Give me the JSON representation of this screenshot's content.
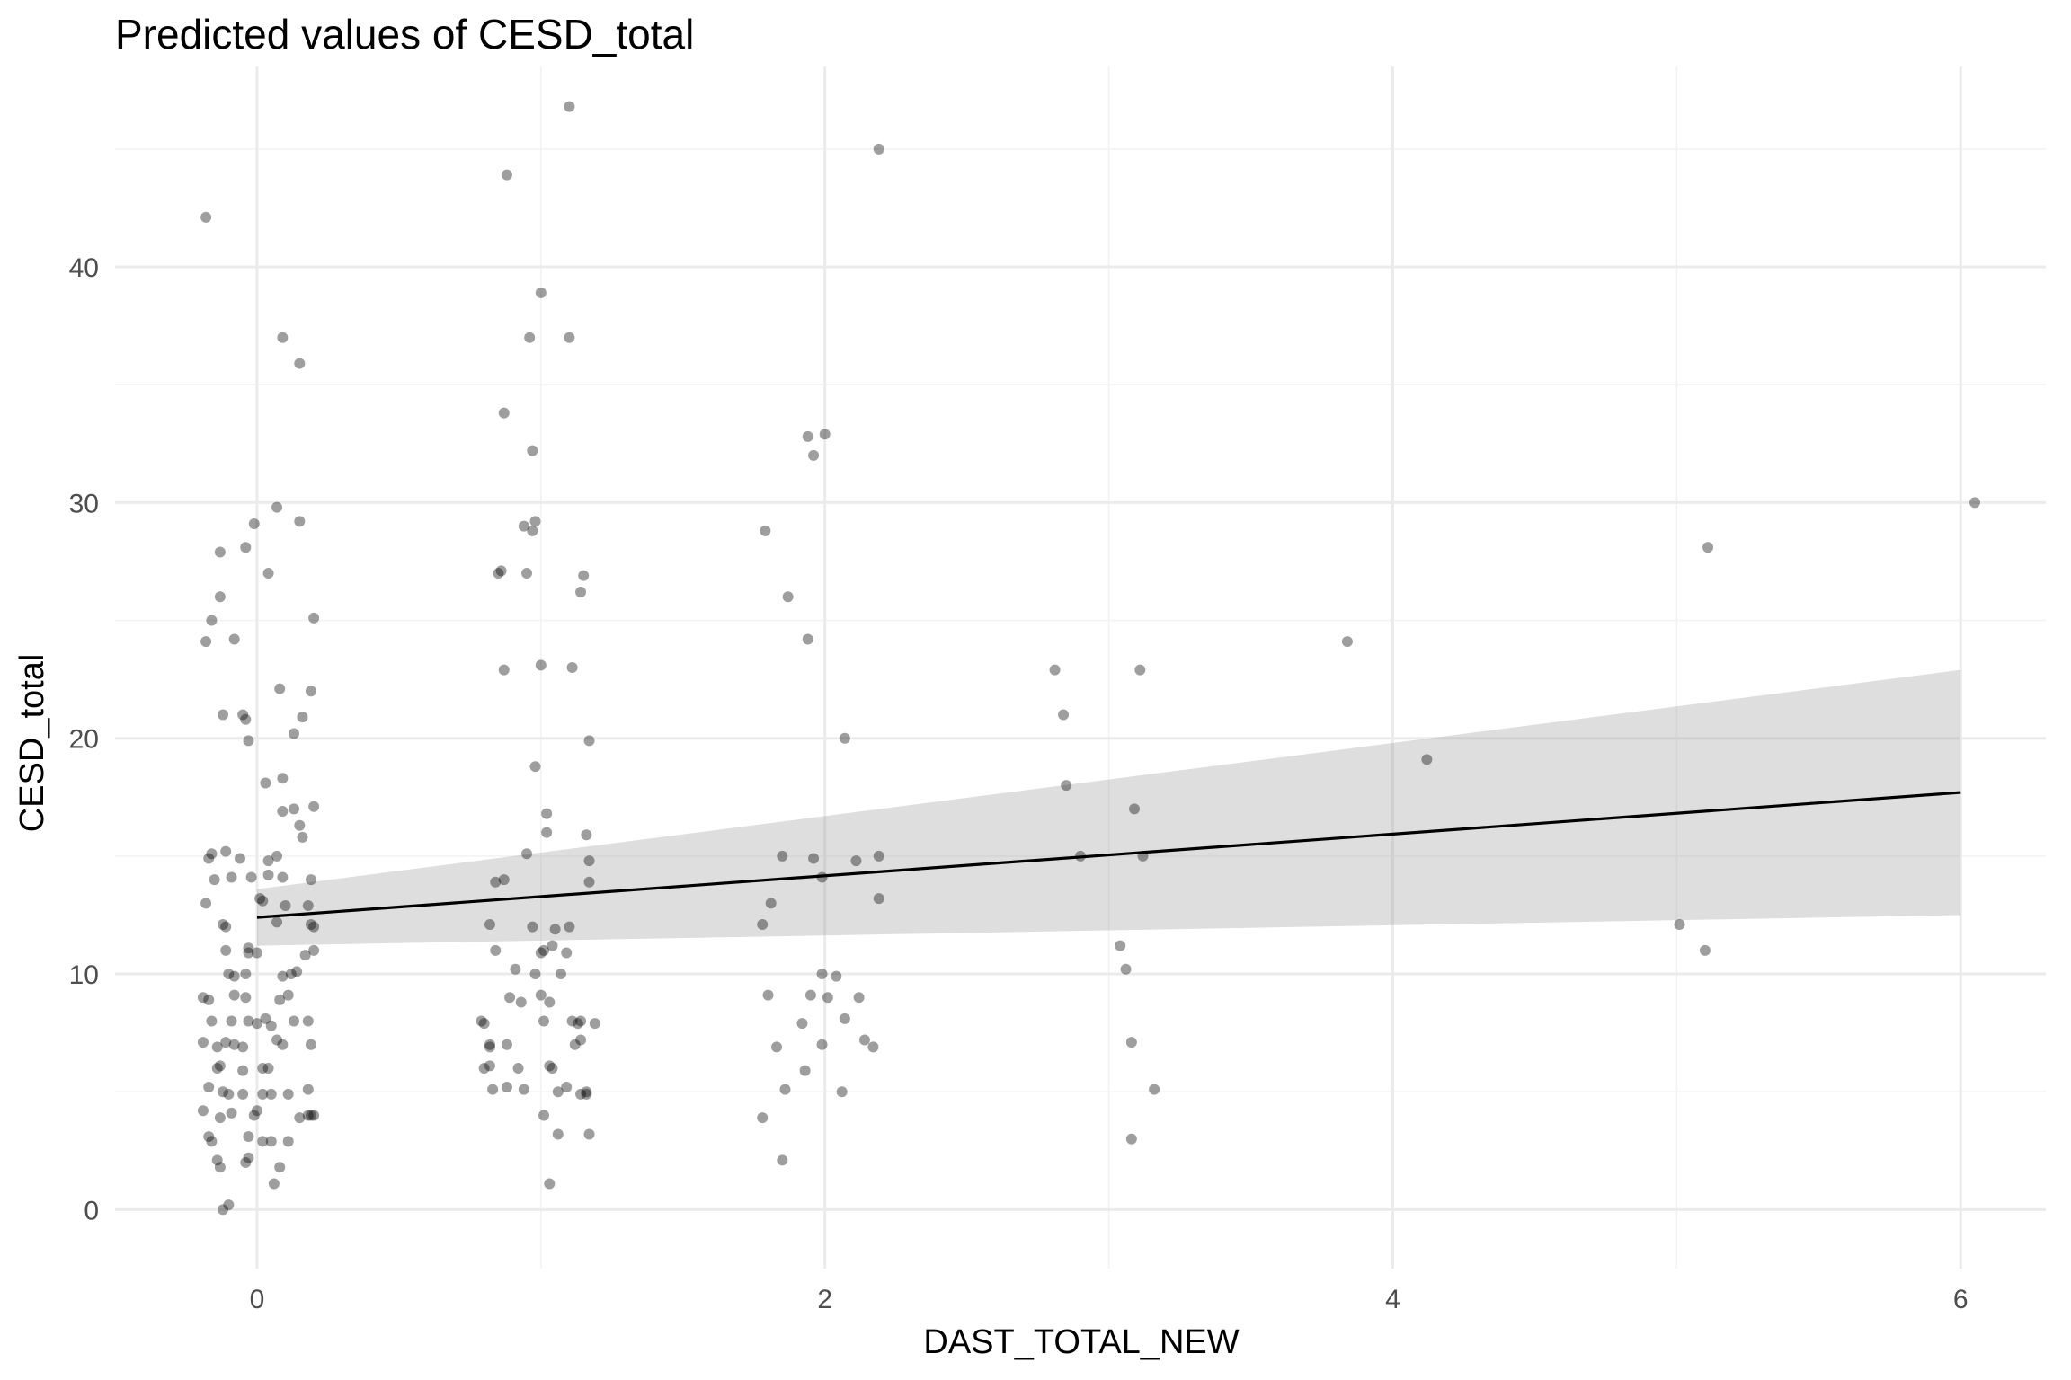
{
  "chart_data": {
    "type": "scatter",
    "title": "Predicted values of CESD_total",
    "xlabel": "DAST_TOTAL_NEW",
    "ylabel": "CESD_total",
    "xlim": [
      -0.5,
      6.3
    ],
    "ylim": [
      -2.5,
      48.5
    ],
    "x_ticks": [
      0,
      2,
      4,
      6
    ],
    "y_ticks": [
      0,
      10,
      20,
      30,
      40
    ],
    "x_minor_ticks": [
      1,
      3,
      5
    ],
    "y_minor_ticks": [
      5,
      15,
      25,
      35,
      45
    ],
    "grid": true,
    "legend": "none",
    "fit": {
      "x": [
        0,
        6
      ],
      "y": [
        12.4,
        17.7
      ],
      "ci_lower": [
        11.2,
        12.5
      ],
      "ci_upper": [
        13.6,
        22.9
      ]
    },
    "points": [
      {
        "x": -0.18,
        "y": 42.1
      },
      {
        "x": 0.09,
        "y": 37.0
      },
      {
        "x": 0.15,
        "y": 35.9
      },
      {
        "x": 0.07,
        "y": 29.8
      },
      {
        "x": -0.01,
        "y": 29.1
      },
      {
        "x": 0.15,
        "y": 29.2
      },
      {
        "x": -0.13,
        "y": 27.9
      },
      {
        "x": -0.04,
        "y": 28.1
      },
      {
        "x": 0.04,
        "y": 27.0
      },
      {
        "x": -0.13,
        "y": 26.0
      },
      {
        "x": -0.16,
        "y": 25.0
      },
      {
        "x": 0.2,
        "y": 25.1
      },
      {
        "x": -0.18,
        "y": 24.1
      },
      {
        "x": -0.08,
        "y": 24.2
      },
      {
        "x": 0.08,
        "y": 22.1
      },
      {
        "x": 0.19,
        "y": 22.0
      },
      {
        "x": -0.12,
        "y": 21.0
      },
      {
        "x": -0.05,
        "y": 21.0
      },
      {
        "x": -0.04,
        "y": 20.8
      },
      {
        "x": 0.16,
        "y": 20.9
      },
      {
        "x": 0.13,
        "y": 20.2
      },
      {
        "x": -0.03,
        "y": 19.9
      },
      {
        "x": 0.03,
        "y": 18.1
      },
      {
        "x": 0.09,
        "y": 18.3
      },
      {
        "x": 0.09,
        "y": 16.9
      },
      {
        "x": 0.13,
        "y": 17.0
      },
      {
        "x": 0.2,
        "y": 17.1
      },
      {
        "x": 0.15,
        "y": 16.3
      },
      {
        "x": 0.16,
        "y": 15.8
      },
      {
        "x": -0.16,
        "y": 15.1
      },
      {
        "x": -0.11,
        "y": 15.2
      },
      {
        "x": -0.17,
        "y": 14.9
      },
      {
        "x": -0.06,
        "y": 14.9
      },
      {
        "x": 0.04,
        "y": 14.8
      },
      {
        "x": 0.07,
        "y": 15.0
      },
      {
        "x": -0.15,
        "y": 14.0
      },
      {
        "x": -0.09,
        "y": 14.1
      },
      {
        "x": -0.02,
        "y": 14.1
      },
      {
        "x": 0.04,
        "y": 14.2
      },
      {
        "x": 0.09,
        "y": 14.1
      },
      {
        "x": 0.19,
        "y": 14.0
      },
      {
        "x": -0.18,
        "y": 13.0
      },
      {
        "x": 0.02,
        "y": 13.1
      },
      {
        "x": 0.01,
        "y": 13.2
      },
      {
        "x": 0.1,
        "y": 12.9
      },
      {
        "x": 0.18,
        "y": 12.9
      },
      {
        "x": -0.12,
        "y": 12.1
      },
      {
        "x": -0.11,
        "y": 12.0
      },
      {
        "x": 0.07,
        "y": 12.2
      },
      {
        "x": 0.19,
        "y": 12.1
      },
      {
        "x": 0.2,
        "y": 12.0
      },
      {
        "x": -0.11,
        "y": 11.0
      },
      {
        "x": -0.03,
        "y": 11.1
      },
      {
        "x": -0.03,
        "y": 10.9
      },
      {
        "x": 0.0,
        "y": 10.9
      },
      {
        "x": 0.17,
        "y": 10.8
      },
      {
        "x": 0.2,
        "y": 11.0
      },
      {
        "x": -0.1,
        "y": 10.0
      },
      {
        "x": -0.08,
        "y": 9.9
      },
      {
        "x": -0.04,
        "y": 10.0
      },
      {
        "x": 0.09,
        "y": 9.9
      },
      {
        "x": 0.12,
        "y": 10.0
      },
      {
        "x": 0.14,
        "y": 10.1
      },
      {
        "x": -0.19,
        "y": 9.0
      },
      {
        "x": -0.17,
        "y": 8.9
      },
      {
        "x": -0.08,
        "y": 9.1
      },
      {
        "x": -0.04,
        "y": 9.0
      },
      {
        "x": 0.08,
        "y": 8.9
      },
      {
        "x": 0.11,
        "y": 9.1
      },
      {
        "x": -0.16,
        "y": 8.0
      },
      {
        "x": -0.09,
        "y": 8.0
      },
      {
        "x": -0.03,
        "y": 8.0
      },
      {
        "x": 0.0,
        "y": 7.9
      },
      {
        "x": 0.03,
        "y": 8.1
      },
      {
        "x": 0.05,
        "y": 7.8
      },
      {
        "x": 0.13,
        "y": 8.0
      },
      {
        "x": 0.18,
        "y": 8.0
      },
      {
        "x": -0.19,
        "y": 7.1
      },
      {
        "x": -0.14,
        "y": 6.9
      },
      {
        "x": -0.11,
        "y": 7.1
      },
      {
        "x": -0.08,
        "y": 7.0
      },
      {
        "x": -0.05,
        "y": 6.9
      },
      {
        "x": 0.07,
        "y": 7.2
      },
      {
        "x": 0.09,
        "y": 7.0
      },
      {
        "x": 0.19,
        "y": 7.0
      },
      {
        "x": -0.14,
        "y": 6.0
      },
      {
        "x": -0.13,
        "y": 6.1
      },
      {
        "x": -0.05,
        "y": 5.9
      },
      {
        "x": 0.02,
        "y": 6.0
      },
      {
        "x": 0.04,
        "y": 6.0
      },
      {
        "x": -0.17,
        "y": 5.2
      },
      {
        "x": -0.12,
        "y": 5.0
      },
      {
        "x": -0.1,
        "y": 4.9
      },
      {
        "x": -0.05,
        "y": 4.9
      },
      {
        "x": 0.02,
        "y": 4.9
      },
      {
        "x": 0.05,
        "y": 4.9
      },
      {
        "x": 0.11,
        "y": 4.9
      },
      {
        "x": 0.18,
        "y": 5.1
      },
      {
        "x": -0.19,
        "y": 4.2
      },
      {
        "x": -0.13,
        "y": 3.9
      },
      {
        "x": -0.09,
        "y": 4.1
      },
      {
        "x": -0.01,
        "y": 4.0
      },
      {
        "x": 0.0,
        "y": 4.2
      },
      {
        "x": 0.15,
        "y": 3.9
      },
      {
        "x": 0.18,
        "y": 4.0
      },
      {
        "x": 0.19,
        "y": 4.0
      },
      {
        "x": 0.2,
        "y": 4.0
      },
      {
        "x": -0.17,
        "y": 3.1
      },
      {
        "x": -0.16,
        "y": 2.9
      },
      {
        "x": -0.03,
        "y": 3.1
      },
      {
        "x": 0.02,
        "y": 2.9
      },
      {
        "x": 0.05,
        "y": 2.9
      },
      {
        "x": 0.11,
        "y": 2.9
      },
      {
        "x": -0.14,
        "y": 2.1
      },
      {
        "x": -0.13,
        "y": 1.8
      },
      {
        "x": -0.04,
        "y": 2.0
      },
      {
        "x": -0.03,
        "y": 2.2
      },
      {
        "x": 0.08,
        "y": 1.8
      },
      {
        "x": 0.06,
        "y": 1.1
      },
      {
        "x": -0.1,
        "y": 0.2
      },
      {
        "x": -0.12,
        "y": 0.0
      },
      {
        "x": 1.1,
        "y": 46.8
      },
      {
        "x": 0.88,
        "y": 43.9
      },
      {
        "x": 1.0,
        "y": 38.9
      },
      {
        "x": 0.96,
        "y": 37.0
      },
      {
        "x": 1.1,
        "y": 37.0
      },
      {
        "x": 0.87,
        "y": 33.8
      },
      {
        "x": 0.97,
        "y": 32.2
      },
      {
        "x": 0.94,
        "y": 29.0
      },
      {
        "x": 0.97,
        "y": 28.8
      },
      {
        "x": 0.98,
        "y": 29.2
      },
      {
        "x": 0.86,
        "y": 27.1
      },
      {
        "x": 0.85,
        "y": 27.0
      },
      {
        "x": 0.95,
        "y": 27.0
      },
      {
        "x": 1.15,
        "y": 26.9
      },
      {
        "x": 1.14,
        "y": 26.2
      },
      {
        "x": 1.0,
        "y": 23.1
      },
      {
        "x": 1.11,
        "y": 23.0
      },
      {
        "x": 0.87,
        "y": 22.9
      },
      {
        "x": 1.17,
        "y": 19.9
      },
      {
        "x": 0.98,
        "y": 18.8
      },
      {
        "x": 1.02,
        "y": 16.8
      },
      {
        "x": 1.16,
        "y": 15.9
      },
      {
        "x": 1.02,
        "y": 16.0
      },
      {
        "x": 0.95,
        "y": 15.1
      },
      {
        "x": 1.17,
        "y": 14.8
      },
      {
        "x": 0.87,
        "y": 14.0
      },
      {
        "x": 0.84,
        "y": 13.9
      },
      {
        "x": 1.17,
        "y": 13.9
      },
      {
        "x": 0.82,
        "y": 12.1
      },
      {
        "x": 0.97,
        "y": 12.0
      },
      {
        "x": 1.05,
        "y": 11.9
      },
      {
        "x": 1.1,
        "y": 12.0
      },
      {
        "x": 0.84,
        "y": 11.0
      },
      {
        "x": 1.0,
        "y": 10.9
      },
      {
        "x": 1.01,
        "y": 11.0
      },
      {
        "x": 1.04,
        "y": 11.2
      },
      {
        "x": 1.09,
        "y": 10.9
      },
      {
        "x": 0.91,
        "y": 10.2
      },
      {
        "x": 0.98,
        "y": 10.0
      },
      {
        "x": 1.07,
        "y": 10.0
      },
      {
        "x": 0.89,
        "y": 9.0
      },
      {
        "x": 1.0,
        "y": 9.1
      },
      {
        "x": 0.93,
        "y": 8.8
      },
      {
        "x": 1.03,
        "y": 8.8
      },
      {
        "x": 0.8,
        "y": 7.9
      },
      {
        "x": 0.79,
        "y": 8.0
      },
      {
        "x": 1.01,
        "y": 8.0
      },
      {
        "x": 1.11,
        "y": 8.0
      },
      {
        "x": 1.14,
        "y": 8.0
      },
      {
        "x": 1.13,
        "y": 7.9
      },
      {
        "x": 1.19,
        "y": 7.9
      },
      {
        "x": 0.82,
        "y": 6.9
      },
      {
        "x": 0.82,
        "y": 7.0
      },
      {
        "x": 0.88,
        "y": 7.0
      },
      {
        "x": 1.12,
        "y": 7.0
      },
      {
        "x": 1.14,
        "y": 7.2
      },
      {
        "x": 0.8,
        "y": 6.0
      },
      {
        "x": 0.82,
        "y": 6.1
      },
      {
        "x": 0.92,
        "y": 6.0
      },
      {
        "x": 1.03,
        "y": 6.1
      },
      {
        "x": 1.04,
        "y": 6.0
      },
      {
        "x": 0.83,
        "y": 5.1
      },
      {
        "x": 0.88,
        "y": 5.2
      },
      {
        "x": 0.94,
        "y": 5.1
      },
      {
        "x": 1.06,
        "y": 5.0
      },
      {
        "x": 1.09,
        "y": 5.2
      },
      {
        "x": 1.14,
        "y": 4.9
      },
      {
        "x": 1.16,
        "y": 4.9
      },
      {
        "x": 1.16,
        "y": 5.0
      },
      {
        "x": 1.01,
        "y": 4.0
      },
      {
        "x": 1.06,
        "y": 3.2
      },
      {
        "x": 1.17,
        "y": 3.2
      },
      {
        "x": 1.03,
        "y": 1.1
      },
      {
        "x": 2.19,
        "y": 45.0
      },
      {
        "x": 1.94,
        "y": 32.8
      },
      {
        "x": 2.0,
        "y": 32.9
      },
      {
        "x": 1.96,
        "y": 32.0
      },
      {
        "x": 1.79,
        "y": 28.8
      },
      {
        "x": 1.87,
        "y": 26.0
      },
      {
        "x": 1.94,
        "y": 24.2
      },
      {
        "x": 2.07,
        "y": 20.0
      },
      {
        "x": 1.85,
        "y": 15.0
      },
      {
        "x": 1.96,
        "y": 14.9
      },
      {
        "x": 2.11,
        "y": 14.8
      },
      {
        "x": 2.19,
        "y": 15.0
      },
      {
        "x": 1.99,
        "y": 14.1
      },
      {
        "x": 1.81,
        "y": 13.0
      },
      {
        "x": 2.19,
        "y": 13.2
      },
      {
        "x": 1.78,
        "y": 12.1
      },
      {
        "x": 1.99,
        "y": 10.0
      },
      {
        "x": 2.04,
        "y": 9.9
      },
      {
        "x": 1.8,
        "y": 9.1
      },
      {
        "x": 1.95,
        "y": 9.1
      },
      {
        "x": 2.01,
        "y": 9.0
      },
      {
        "x": 2.12,
        "y": 9.0
      },
      {
        "x": 1.92,
        "y": 7.9
      },
      {
        "x": 2.07,
        "y": 8.1
      },
      {
        "x": 1.83,
        "y": 6.9
      },
      {
        "x": 1.99,
        "y": 7.0
      },
      {
        "x": 2.14,
        "y": 7.2
      },
      {
        "x": 2.17,
        "y": 6.9
      },
      {
        "x": 1.93,
        "y": 5.9
      },
      {
        "x": 1.86,
        "y": 5.1
      },
      {
        "x": 2.06,
        "y": 5.0
      },
      {
        "x": 1.78,
        "y": 3.9
      },
      {
        "x": 1.85,
        "y": 2.1
      },
      {
        "x": 2.81,
        "y": 22.9
      },
      {
        "x": 3.11,
        "y": 22.9
      },
      {
        "x": 2.84,
        "y": 21.0
      },
      {
        "x": 2.85,
        "y": 18.0
      },
      {
        "x": 3.09,
        "y": 17.0
      },
      {
        "x": 2.9,
        "y": 15.0
      },
      {
        "x": 3.12,
        "y": 15.0
      },
      {
        "x": 3.04,
        "y": 11.2
      },
      {
        "x": 3.06,
        "y": 10.2
      },
      {
        "x": 3.08,
        "y": 7.1
      },
      {
        "x": 3.16,
        "y": 5.1
      },
      {
        "x": 3.08,
        "y": 3.0
      },
      {
        "x": 3.84,
        "y": 24.1
      },
      {
        "x": 4.12,
        "y": 19.1
      },
      {
        "x": 5.11,
        "y": 28.1
      },
      {
        "x": 5.01,
        "y": 12.1
      },
      {
        "x": 5.1,
        "y": 11.0
      },
      {
        "x": 6.05,
        "y": 30.0
      }
    ]
  }
}
